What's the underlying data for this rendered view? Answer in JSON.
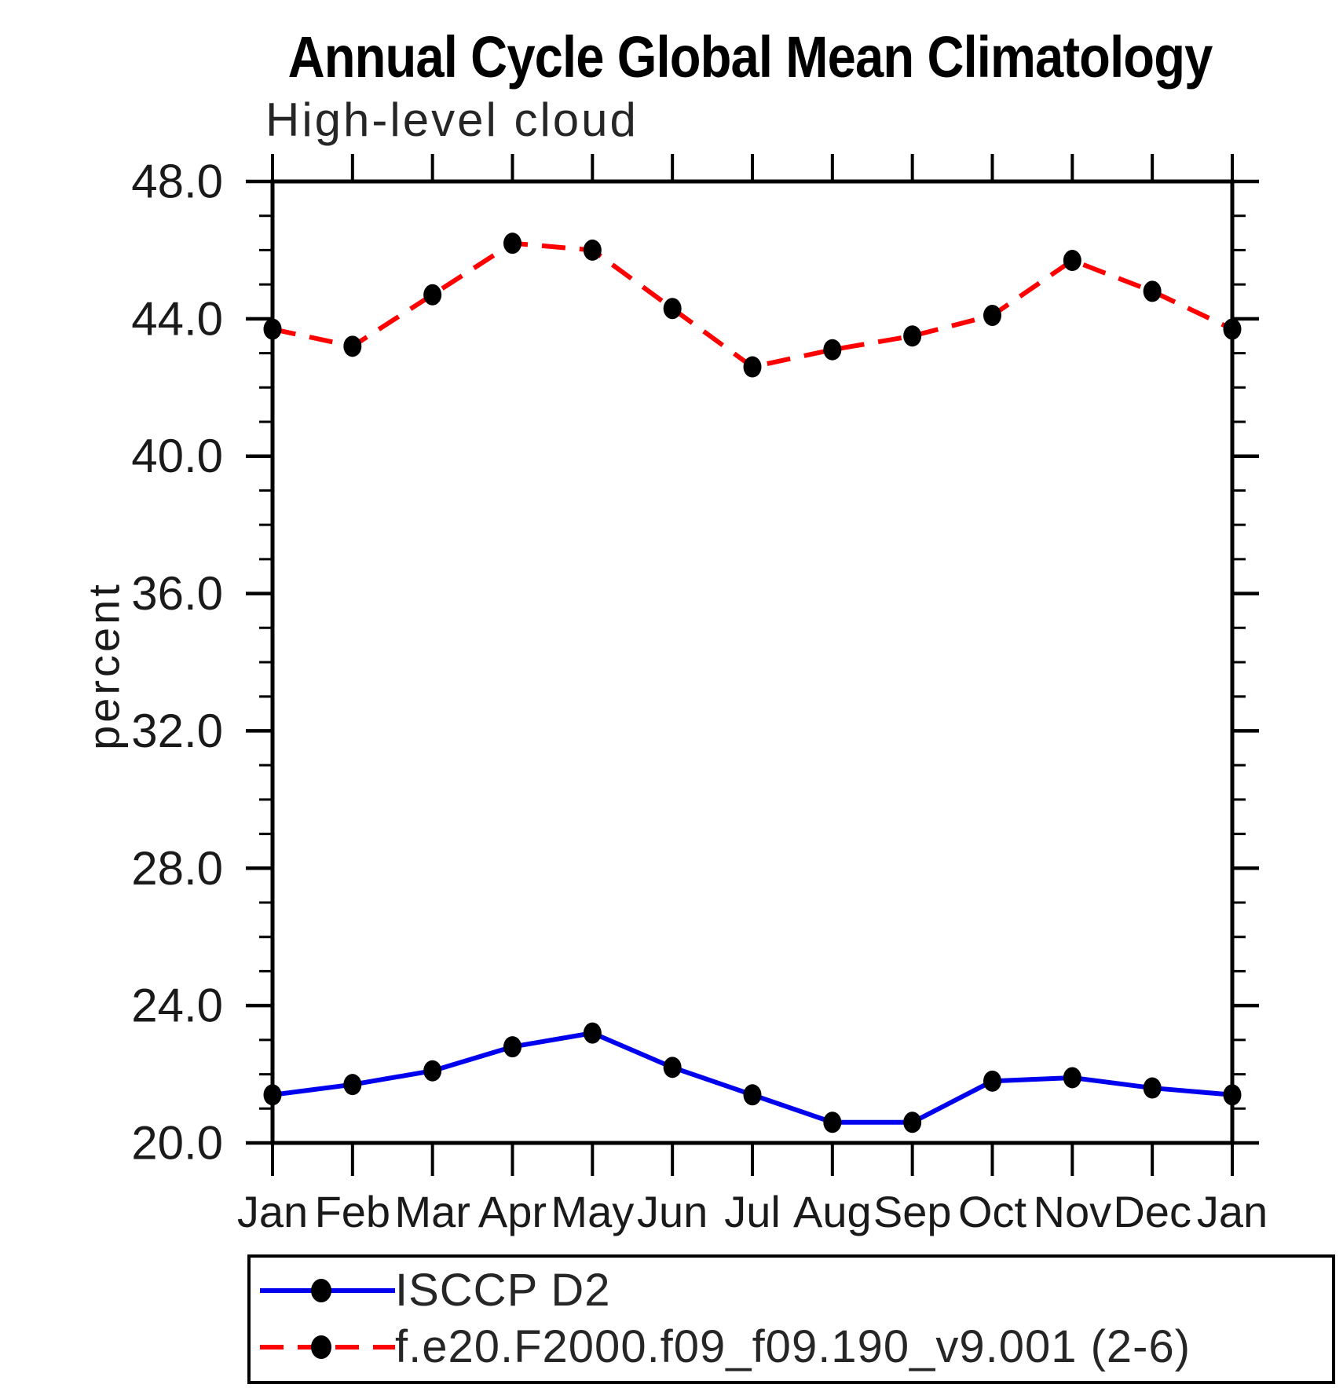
{
  "page": {
    "background": "#ffffff",
    "axis_color": "#000000",
    "tick_label_color": "#1a1a1a"
  },
  "chart_data": {
    "type": "line",
    "title": "Annual Cycle Global Mean Climatology",
    "subtitle": "High-level cloud",
    "ylabel": "percent",
    "xlabel": "",
    "categories": [
      "Jan",
      "Feb",
      "Mar",
      "Apr",
      "May",
      "Jun",
      "Jul",
      "Aug",
      "Sep",
      "Oct",
      "Nov",
      "Dec",
      "Jan"
    ],
    "ylim": [
      20.0,
      48.0
    ],
    "ytick_major_step": 4.0,
    "ytick_minor_step": 1.0,
    "ytick_labels": [
      "48.0",
      "44.0",
      "40.0",
      "36.0",
      "32.0",
      "28.0",
      "24.0",
      "20.0"
    ],
    "grid": false,
    "legend_position": "bottom-left box",
    "marker": "filled-circle",
    "marker_color": "#000000",
    "series": [
      {
        "name": "ISCCP D2",
        "color": "#0000ee",
        "line_style": "solid",
        "values": [
          21.4,
          21.7,
          22.1,
          22.8,
          23.2,
          22.2,
          21.4,
          20.6,
          20.6,
          21.8,
          21.9,
          21.6,
          21.4
        ]
      },
      {
        "name": "f.e20.F2000.f09_f09.190_v9.001 (2-6)",
        "color": "#ff0000",
        "line_style": "dashed",
        "values": [
          43.7,
          43.2,
          44.7,
          46.2,
          46.0,
          44.3,
          42.6,
          43.1,
          43.5,
          44.1,
          45.7,
          44.8,
          43.7
        ]
      }
    ]
  }
}
